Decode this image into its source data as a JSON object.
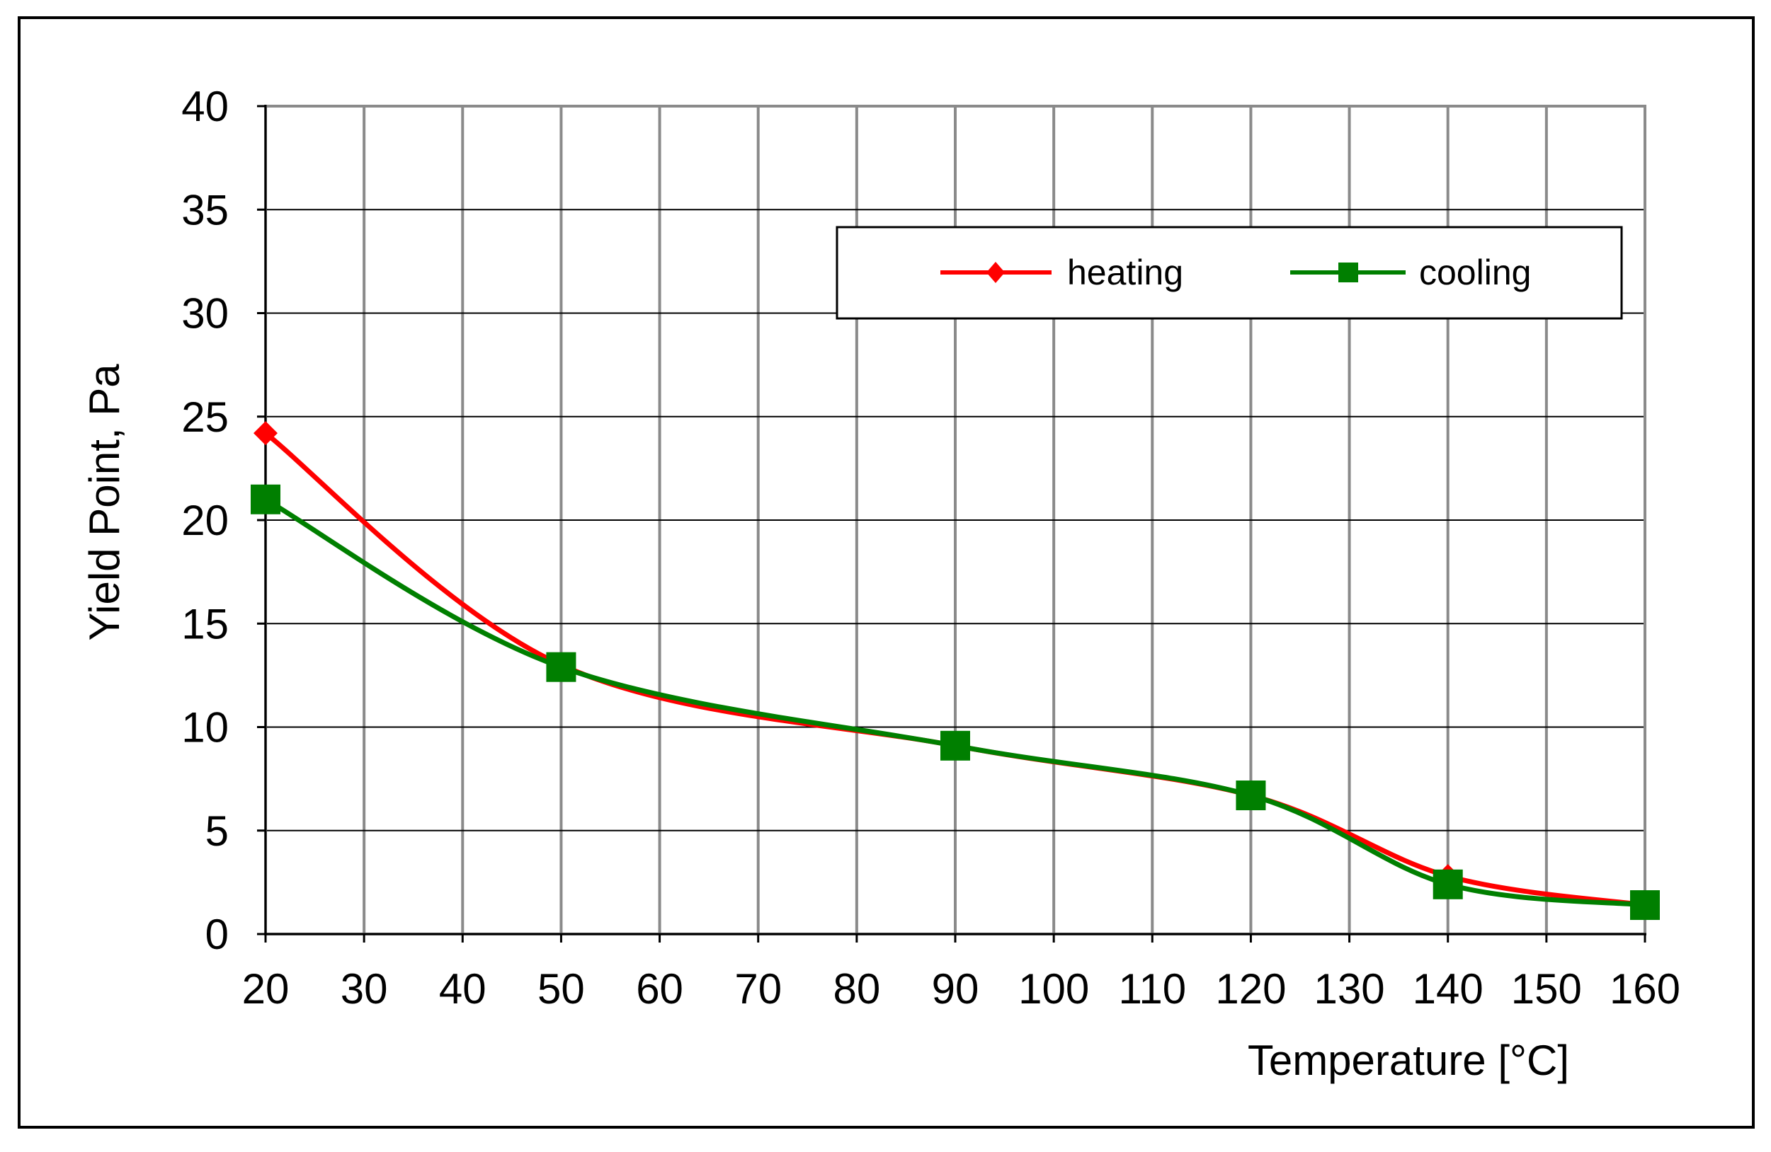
{
  "chart_data": {
    "type": "line",
    "title": "",
    "xlabel": "Temperature [°C]",
    "ylabel": "Yield Point, Pa",
    "xlim": [
      20,
      160
    ],
    "ylim": [
      0,
      40
    ],
    "x_ticks": [
      20,
      30,
      40,
      50,
      60,
      70,
      80,
      90,
      100,
      110,
      120,
      130,
      140,
      150,
      160
    ],
    "y_ticks": [
      0,
      5,
      10,
      15,
      20,
      25,
      30,
      35,
      40
    ],
    "x_tick_labels": [
      "20",
      "30",
      "40",
      "50",
      "60",
      "70",
      "80",
      "90",
      "100",
      "110",
      "120",
      "130",
      "140",
      "150",
      "160"
    ],
    "y_tick_labels": [
      "0",
      "5",
      "10",
      "15",
      "20",
      "25",
      "30",
      "35",
      "40"
    ],
    "grid": true,
    "legend_position": "top-right",
    "series": [
      {
        "name": "heating",
        "color": "#ff0000",
        "marker": "diamond",
        "x": [
          20,
          50,
          90,
          120,
          140,
          160
        ],
        "values": [
          24.2,
          13.0,
          9.1,
          6.7,
          2.8,
          1.4
        ]
      },
      {
        "name": "cooling",
        "color": "#007f00",
        "marker": "square",
        "x": [
          20,
          50,
          90,
          120,
          140,
          160
        ],
        "values": [
          21.0,
          12.9,
          9.1,
          6.7,
          2.4,
          1.4
        ]
      }
    ]
  }
}
